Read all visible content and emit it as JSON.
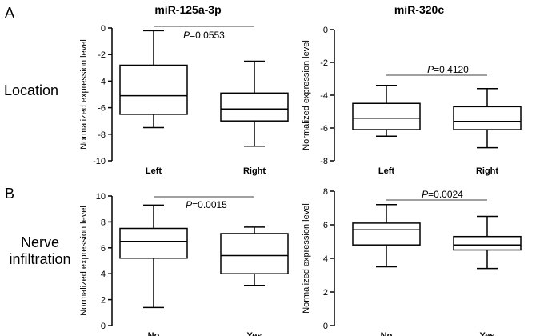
{
  "labels": {
    "panel_a": "A",
    "panel_b": "B",
    "row_location": "Location",
    "row_nerve_line1": "Nerve",
    "row_nerve_line2": "infiltration",
    "col_left": "miR-125a-3p",
    "col_right": "miR-320c"
  },
  "chart_data": [
    {
      "type": "boxplot",
      "title": "miR-125a-3p",
      "row": "Location",
      "ylabel": "Normalized expression level",
      "ylim": [
        -10,
        0
      ],
      "yticks": [
        -10,
        -8,
        -6,
        -4,
        -2,
        0
      ],
      "categories": [
        "Left",
        "Right"
      ],
      "boxes": [
        {
          "min": -7.5,
          "q1": -6.5,
          "median": -5.1,
          "q3": -2.8,
          "max": -0.2
        },
        {
          "min": -8.9,
          "q1": -7.0,
          "median": -6.1,
          "q3": -4.9,
          "max": -2.5
        }
      ],
      "p_prefix": "P",
      "p_value": "=0.0553"
    },
    {
      "type": "boxplot",
      "title": "miR-320c",
      "row": "Location",
      "ylabel": "Normalized expression level",
      "ylim": [
        -8,
        0
      ],
      "yticks": [
        -8,
        -6,
        -4,
        -2,
        0
      ],
      "categories": [
        "Left",
        "Right"
      ],
      "boxes": [
        {
          "min": -6.5,
          "q1": -6.1,
          "median": -5.4,
          "q3": -4.5,
          "max": -3.4
        },
        {
          "min": -7.2,
          "q1": -6.1,
          "median": -5.6,
          "q3": -4.7,
          "max": -3.6
        }
      ],
      "p_prefix": "P",
      "p_value": "=0.4120"
    },
    {
      "type": "boxplot",
      "title": "miR-125a-3p",
      "row": "Nerve infiltration",
      "ylabel": "Normalized expression level",
      "ylim": [
        0,
        10
      ],
      "yticks": [
        0,
        2,
        4,
        6,
        8,
        10
      ],
      "categories": [
        "No",
        "Yes"
      ],
      "boxes": [
        {
          "min": 1.4,
          "q1": 5.2,
          "median": 6.5,
          "q3": 7.5,
          "max": 9.3
        },
        {
          "min": 3.1,
          "q1": 4.0,
          "median": 5.4,
          "q3": 7.1,
          "max": 7.6
        }
      ],
      "p_prefix": "P",
      "p_value": "=0.0015"
    },
    {
      "type": "boxplot",
      "title": "miR-320c",
      "row": "Nerve infiltration",
      "ylabel": "Normalized expression level",
      "ylim": [
        0,
        8
      ],
      "yticks": [
        0,
        2,
        4,
        6,
        8
      ],
      "categories": [
        "No",
        "Yes"
      ],
      "boxes": [
        {
          "min": 3.5,
          "q1": 4.8,
          "median": 5.7,
          "q3": 6.1,
          "max": 7.2
        },
        {
          "min": 3.4,
          "q1": 4.5,
          "median": 4.8,
          "q3": 5.3,
          "max": 6.5
        }
      ],
      "p_prefix": "P",
      "p_value": "=0.0024"
    }
  ]
}
